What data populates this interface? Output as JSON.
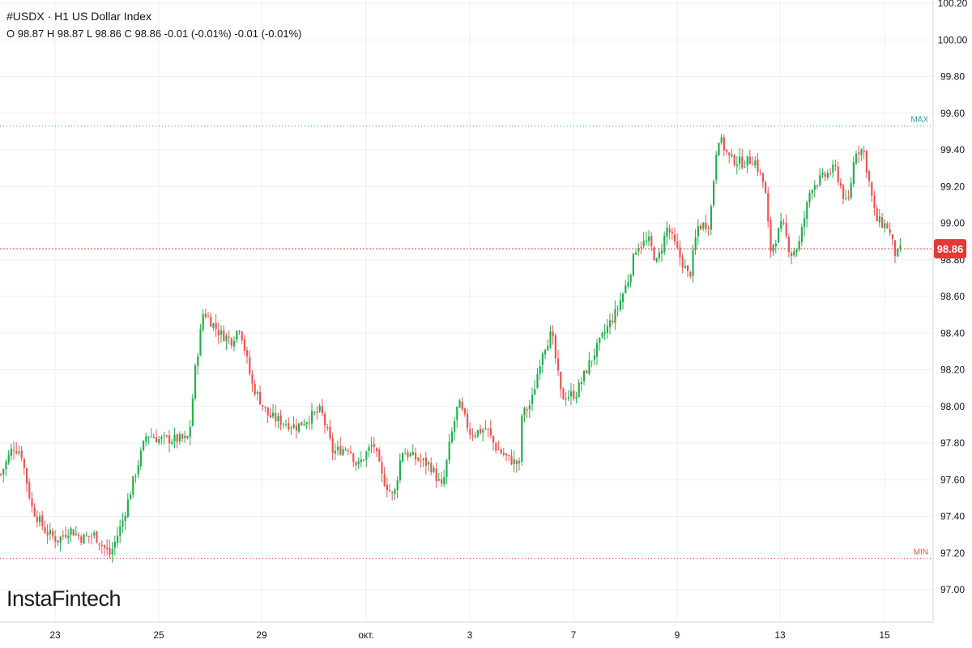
{
  "header": {
    "title": "#USDX · H1 US Dollar Index",
    "ohlc": "O 98.87 H 98.87 L 98.86 C 98.86 -0.01 (-0.01%) -0.01 (-0.01%)"
  },
  "brand": "InstaFintech",
  "colors": {
    "up": "#26a69a",
    "up_bright": "#22b14c",
    "down": "#ef5350",
    "max_line": "#26a69a",
    "min_line": "#ef5350",
    "price_line": "#e53935",
    "grid": "#eceff3"
  },
  "chart_data": {
    "type": "candlestick",
    "timeframe": "H1",
    "y_range": [
      96.9,
      100.25
    ],
    "y_ticks": [
      "97.00",
      "97.20",
      "97.40",
      "97.60",
      "97.80",
      "98.00",
      "98.20",
      "98.40",
      "98.60",
      "98.80",
      "99.00",
      "99.20",
      "99.40",
      "99.60",
      "99.80",
      "100.00",
      "100.20"
    ],
    "x_ticks": [
      "23",
      "25",
      "29",
      "окт.",
      "3",
      "7",
      "9",
      "13",
      "15"
    ],
    "current_price": "98.86",
    "max_label": "MAX",
    "max_value": 99.53,
    "min_label": "MIN",
    "min_value": 97.17,
    "path": [
      [
        0,
        97.63
      ],
      [
        15,
        97.78
      ],
      [
        25,
        97.75
      ],
      [
        38,
        97.45
      ],
      [
        55,
        97.32
      ],
      [
        70,
        97.27
      ],
      [
        85,
        97.33
      ],
      [
        100,
        97.28
      ],
      [
        115,
        97.3
      ],
      [
        135,
        97.19
      ],
      [
        150,
        97.37
      ],
      [
        165,
        97.62
      ],
      [
        180,
        97.85
      ],
      [
        195,
        97.82
      ],
      [
        220,
        97.82
      ],
      [
        232,
        97.82
      ],
      [
        240,
        98.2
      ],
      [
        250,
        98.52
      ],
      [
        270,
        98.4
      ],
      [
        285,
        98.36
      ],
      [
        295,
        98.44
      ],
      [
        310,
        98.12
      ],
      [
        330,
        97.95
      ],
      [
        345,
        97.92
      ],
      [
        365,
        97.89
      ],
      [
        395,
        97.98
      ],
      [
        410,
        97.75
      ],
      [
        430,
        97.78
      ],
      [
        440,
        97.67
      ],
      [
        460,
        97.8
      ],
      [
        470,
        97.62
      ],
      [
        485,
        97.5
      ],
      [
        495,
        97.76
      ],
      [
        510,
        97.72
      ],
      [
        530,
        97.68
      ],
      [
        545,
        97.55
      ],
      [
        555,
        97.82
      ],
      [
        565,
        98.02
      ],
      [
        580,
        97.85
      ],
      [
        600,
        97.88
      ],
      [
        610,
        97.78
      ],
      [
        625,
        97.72
      ],
      [
        640,
        97.68
      ],
      [
        643,
        97.95
      ],
      [
        655,
        98.02
      ],
      [
        668,
        98.3
      ],
      [
        680,
        98.4
      ],
      [
        692,
        98.05
      ],
      [
        710,
        98.07
      ],
      [
        725,
        98.22
      ],
      [
        745,
        98.4
      ],
      [
        760,
        98.52
      ],
      [
        775,
        98.7
      ],
      [
        785,
        98.88
      ],
      [
        800,
        98.9
      ],
      [
        810,
        98.78
      ],
      [
        823,
        98.98
      ],
      [
        835,
        98.85
      ],
      [
        850,
        98.7
      ],
      [
        860,
        98.98
      ],
      [
        875,
        99.0
      ],
      [
        885,
        99.48
      ],
      [
        900,
        99.35
      ],
      [
        915,
        99.33
      ],
      [
        930,
        99.35
      ],
      [
        943,
        99.2
      ],
      [
        950,
        98.85
      ],
      [
        965,
        99.0
      ],
      [
        975,
        98.83
      ],
      [
        985,
        98.88
      ],
      [
        1000,
        99.2
      ],
      [
        1015,
        99.25
      ],
      [
        1030,
        99.3
      ],
      [
        1045,
        99.08
      ],
      [
        1055,
        99.4
      ],
      [
        1065,
        99.4
      ],
      [
        1080,
        99.02
      ],
      [
        1095,
        98.98
      ],
      [
        1105,
        98.82
      ],
      [
        1112,
        98.86
      ]
    ]
  }
}
